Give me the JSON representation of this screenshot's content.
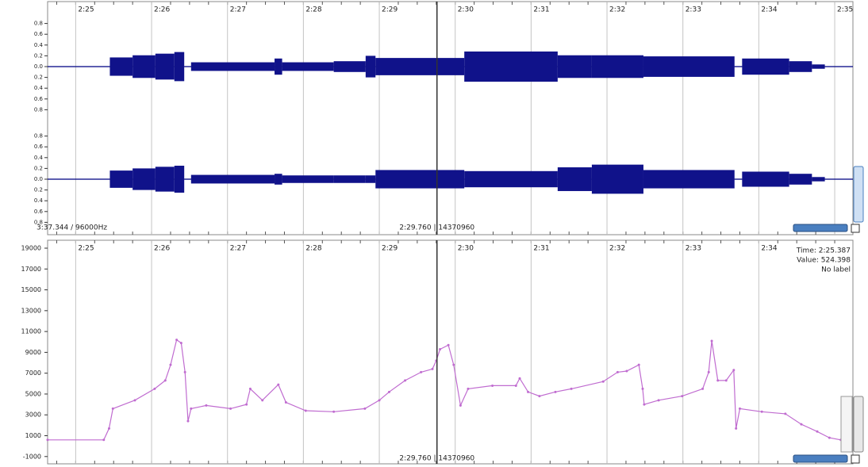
{
  "status": "3:37.344 / 96000Hz",
  "cursor": {
    "time": 149.76,
    "label": "2:29.760 | 14370960"
  },
  "info_box": {
    "time": "Time: 2:25.387",
    "value": "Value: 524.398",
    "label": "No label"
  },
  "chart_data": [
    {
      "type": "envelope",
      "xlim": [
        144.63,
        155.24
      ],
      "xticks": [
        {
          "value": 145,
          "label": "2:25"
        },
        {
          "value": 146,
          "label": "2:26"
        },
        {
          "value": 147,
          "label": "2:27"
        },
        {
          "value": 148,
          "label": "2:28"
        },
        {
          "value": 149,
          "label": "2:29"
        },
        {
          "value": 150,
          "label": "2:30"
        },
        {
          "value": 151,
          "label": "2:31"
        },
        {
          "value": 152,
          "label": "2:32"
        },
        {
          "value": 153,
          "label": "2:33"
        },
        {
          "value": 154,
          "label": "2:34"
        },
        {
          "value": 155,
          "label": "2:35"
        }
      ],
      "ylim": [
        -1,
        1
      ],
      "yticks": [
        {
          "value": 0.8,
          "label": "0.8"
        },
        {
          "value": 0.6,
          "label": "0.6"
        },
        {
          "value": 0.4,
          "label": "0.4"
        },
        {
          "value": 0.2,
          "label": "0.2"
        },
        {
          "value": 0,
          "label": "0.0"
        },
        {
          "value": -0.2,
          "label": "0.2"
        },
        {
          "value": -0.4,
          "label": "0.4"
        },
        {
          "value": -0.6,
          "label": "0.6"
        },
        {
          "value": -0.8,
          "label": "0.8"
        }
      ],
      "grid": true,
      "x": [
        144.63,
        145.45,
        145.75,
        146.05,
        146.3,
        146.43,
        146.52,
        147.62,
        147.72,
        148.4,
        148.82,
        148.95,
        150.12,
        151.35,
        151.8,
        152.48,
        153.68,
        153.78,
        154.4,
        154.7,
        154.87
      ],
      "series": [
        {
          "color": "#10128a",
          "values": [
            0.01,
            0.17,
            0.21,
            0.24,
            0.27,
            0.01,
            0.08,
            0.15,
            0.08,
            0.1,
            0.2,
            0.16,
            0.28,
            0.21,
            0.21,
            0.19,
            0.01,
            0.15,
            0.1,
            0.04,
            0.01
          ]
        },
        {
          "color": "#10128a",
          "values": [
            0.01,
            0.16,
            0.2,
            0.23,
            0.25,
            0.01,
            0.08,
            0.1,
            0.07,
            0.07,
            0.07,
            0.17,
            0.15,
            0.22,
            0.27,
            0.17,
            0.01,
            0.14,
            0.1,
            0.04,
            0.01
          ]
        }
      ]
    },
    {
      "type": "line",
      "xlim": [
        144.63,
        155.24
      ],
      "xticks": [
        {
          "value": 145,
          "label": "2:25"
        },
        {
          "value": 146,
          "label": "2:26"
        },
        {
          "value": 147,
          "label": "2:27"
        },
        {
          "value": 148,
          "label": "2:28"
        },
        {
          "value": 149,
          "label": "2:29"
        },
        {
          "value": 150,
          "label": "2:30"
        },
        {
          "value": 151,
          "label": "2:31"
        },
        {
          "value": 152,
          "label": "2:32"
        },
        {
          "value": 153,
          "label": "2:33"
        },
        {
          "value": 154,
          "label": "2:34"
        }
      ],
      "ylim": [
        -1700,
        19760
      ],
      "yticks": [
        19000,
        17000,
        15000,
        13000,
        11000,
        9000,
        7000,
        5000,
        3000,
        1000,
        -1000
      ],
      "grid": true,
      "color": "#c06cd0",
      "x": [
        144.63,
        145.37,
        145.44,
        145.49,
        145.78,
        146.04,
        146.18,
        146.25,
        146.33,
        146.39,
        146.44,
        146.48,
        146.52,
        146.72,
        147.04,
        147.25,
        147.3,
        147.46,
        147.67,
        147.77,
        148.03,
        148.4,
        148.81,
        149.0,
        149.13,
        149.34,
        149.55,
        149.7,
        149.75,
        149.8,
        149.91,
        149.98,
        150.07,
        150.17,
        150.49,
        150.8,
        150.85,
        150.96,
        151.11,
        151.32,
        151.53,
        151.95,
        152.14,
        152.26,
        152.42,
        152.47,
        152.49,
        152.68,
        152.99,
        153.26,
        153.34,
        153.38,
        153.46,
        153.57,
        153.67,
        153.7,
        153.75,
        154.04,
        154.35,
        154.56,
        154.77,
        154.93,
        155.08
      ],
      "values": [
        600,
        600,
        1700,
        3600,
        4400,
        5500,
        6300,
        7800,
        10200,
        9900,
        7100,
        2400,
        3600,
        3900,
        3600,
        4000,
        5500,
        4400,
        5900,
        4200,
        3400,
        3300,
        3600,
        4400,
        5200,
        6300,
        7100,
        7400,
        8200,
        9300,
        9700,
        7800,
        3900,
        5500,
        5800,
        5800,
        6500,
        5200,
        4800,
        5200,
        5500,
        6200,
        7100,
        7200,
        7800,
        5500,
        4000,
        4400,
        4800,
        5500,
        7100,
        10100,
        6300,
        6300,
        7300,
        1700,
        3600,
        3300,
        3100,
        2100,
        1400,
        800,
        600
      ]
    }
  ]
}
